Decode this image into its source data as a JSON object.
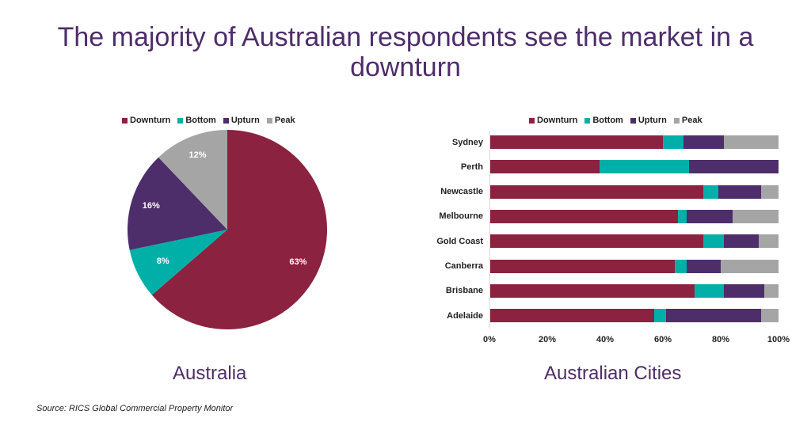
{
  "title": "The majority of Australian respondents see the market in a downturn",
  "title_lines": [
    "The majority of Australian respondents see the market in a",
    "downturn"
  ],
  "colors": {
    "Downturn": "#8B2240",
    "Bottom": "#00B0A8",
    "Upturn": "#4E2D6B",
    "Peak": "#A5A5A5",
    "title": "#4E2D6B"
  },
  "legend": [
    "Downturn",
    "Bottom",
    "Upturn",
    "Peak"
  ],
  "pie": {
    "caption": "Australia",
    "labels": [
      "63%",
      "8%",
      "16%",
      "12%"
    ]
  },
  "bar": {
    "caption": "Australian Cities",
    "ticks": [
      "0%",
      "20%",
      "40%",
      "60%",
      "80%",
      "100%"
    ]
  },
  "source": "Source: RICS Global Commercial Property Monitor",
  "chart_data": [
    {
      "type": "pie",
      "title": "Australia",
      "categories": [
        "Downturn",
        "Bottom",
        "Upturn",
        "Peak"
      ],
      "values": [
        63,
        8,
        16,
        12
      ],
      "labels": [
        "63%",
        "8%",
        "16%",
        "12%"
      ],
      "legend_position": "top"
    },
    {
      "type": "bar",
      "orientation": "horizontal",
      "stacked": true,
      "percent": true,
      "title": "Australian Cities",
      "categories": [
        "Sydney",
        "Perth",
        "Newcastle",
        "Melbourne",
        "Gold Coast",
        "Canberra",
        "Brisbane",
        "Adelaide"
      ],
      "series": [
        {
          "name": "Downturn",
          "values": [
            60,
            38,
            74,
            65,
            74,
            64,
            71,
            57
          ]
        },
        {
          "name": "Bottom",
          "values": [
            7,
            31,
            5,
            3,
            7,
            4,
            10,
            4
          ]
        },
        {
          "name": "Upturn",
          "values": [
            14,
            31,
            15,
            16,
            12,
            12,
            14,
            33
          ]
        },
        {
          "name": "Peak",
          "values": [
            19,
            0,
            6,
            16,
            7,
            20,
            5,
            6
          ]
        }
      ],
      "xlabel": "",
      "ylabel": "",
      "xlim": [
        0,
        100
      ],
      "xticks": [
        "0%",
        "20%",
        "40%",
        "60%",
        "80%",
        "100%"
      ],
      "legend_position": "top",
      "grid": false
    }
  ]
}
